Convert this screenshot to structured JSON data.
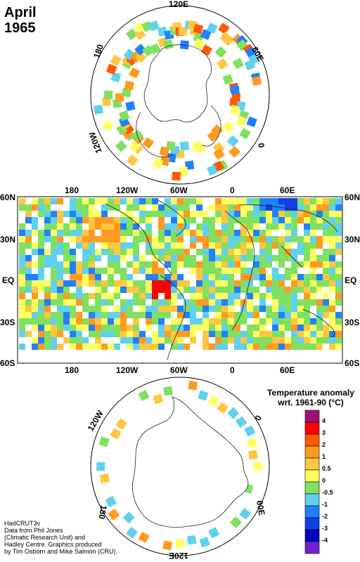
{
  "title": {
    "month": "April",
    "year": "1965"
  },
  "north_polar_labels": {
    "top": "120E",
    "right": "60E",
    "bottom_right": "0",
    "left": "180",
    "bottom_left": "120W"
  },
  "south_polar_labels": {
    "top": "0",
    "left": "120W",
    "right": "60E",
    "bottom_left": "180",
    "bottom": "120E"
  },
  "map_axis": {
    "lon_labels": [
      "180",
      "120W",
      "60W",
      "0",
      "60E"
    ],
    "lat_labels": [
      "60N",
      "30N",
      "EQ",
      "30S",
      "60S"
    ]
  },
  "legend": {
    "title_line1": "Temperature anomaly",
    "title_line2": "wrt. 1961-90  (°C)",
    "entries": [
      {
        "label": "4",
        "color": "#a0107a"
      },
      {
        "label": "3",
        "color": "#ff0000"
      },
      {
        "label": "2",
        "color": "#ff5a00"
      },
      {
        "label": "1",
        "color": "#ff9a20"
      },
      {
        "label": "0.5",
        "color": "#ffc640"
      },
      {
        "label": "0",
        "color": "#ffff60"
      },
      {
        "label": "-0.5",
        "color": "#80e060"
      },
      {
        "label": "-1",
        "color": "#60d0f0"
      },
      {
        "label": "-2",
        "color": "#2080ff"
      },
      {
        "label": "-3",
        "color": "#1040e0"
      },
      {
        "label": "-4",
        "color": "#0000c0"
      },
      {
        "label": "",
        "color": "#7020d0"
      }
    ]
  },
  "credit": {
    "line1": "HadCRUT3v",
    "line2": "Data from Phil Jones",
    "line3": "(Climatic Research Unit) and",
    "line4": "Hadley Centre.  Graphics produced",
    "line5": "by Tim Osborn and Mike Salmon (CRU)."
  }
}
